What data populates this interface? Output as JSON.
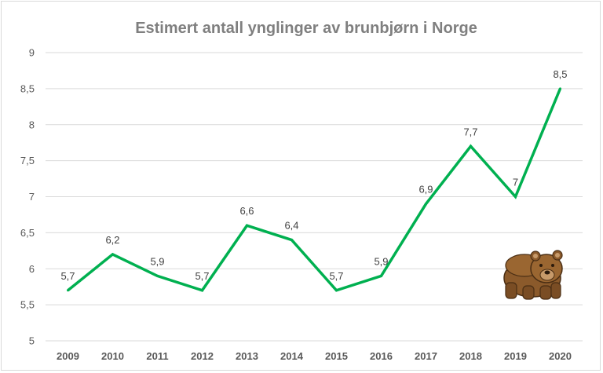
{
  "chart_data": {
    "type": "line",
    "title": "Estimert antall ynglinger av brunbjørn i Norge",
    "xlabel": "",
    "ylabel": "",
    "categories": [
      "2009",
      "2010",
      "2011",
      "2012",
      "2013",
      "2014",
      "2015",
      "2016",
      "2017",
      "2018",
      "2019",
      "2020"
    ],
    "series": [
      {
        "values": [
          5.7,
          6.2,
          5.9,
          5.7,
          6.6,
          6.4,
          5.7,
          5.9,
          6.9,
          7.7,
          7.0,
          8.5
        ],
        "labels": [
          "5,7",
          "6,2",
          "5,9",
          "5,7",
          "6,6",
          "6,4",
          "5,7",
          "5,9",
          "6,9",
          "7,7",
          "7",
          "8,5"
        ],
        "color": "#00b050"
      }
    ],
    "ylim": [
      5,
      9
    ],
    "yticks": [
      5,
      5.5,
      6,
      6.5,
      7,
      7.5,
      8,
      8.5,
      9
    ],
    "ytick_labels": [
      "5",
      "5,5",
      "6",
      "6,5",
      "7",
      "7,5",
      "8",
      "8,5",
      "9"
    ],
    "grid": true,
    "legend": "none",
    "decoration_icon": "brown-bear-icon"
  }
}
